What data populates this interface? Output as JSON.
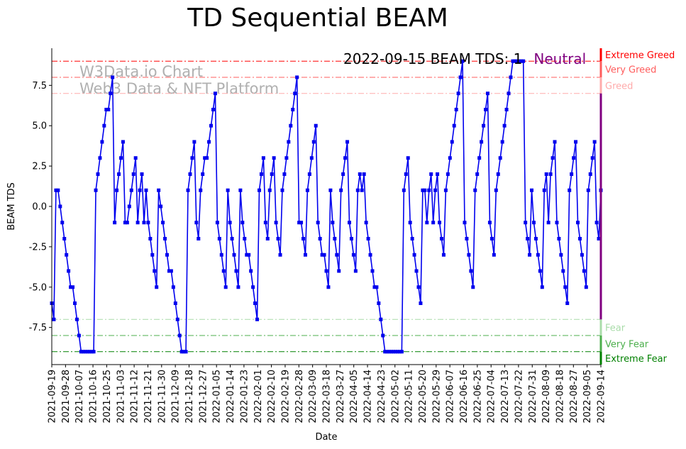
{
  "chart_data": {
    "type": "line",
    "title": "TD Sequential BEAM",
    "xlabel": "Date",
    "ylabel": "BEAM TDS",
    "ylim": [
      -9.8,
      9.8
    ],
    "yticks": [
      "7.5",
      "5.0",
      "2.5",
      "0.0",
      "-2.5",
      "-5.0",
      "-7.5"
    ],
    "ytick_values": [
      7.5,
      5.0,
      2.5,
      0.0,
      -2.5,
      -5.0,
      -7.5
    ],
    "x_start": "2021-09-19",
    "x_end": "2022-09-14",
    "xticks": [
      "2021-09-19",
      "2021-09-28",
      "2021-10-07",
      "2021-10-16",
      "2021-10-25",
      "2021-11-03",
      "2021-11-12",
      "2021-11-21",
      "2021-11-30",
      "2021-12-09",
      "2021-12-18",
      "2021-12-27",
      "2022-01-05",
      "2022-01-14",
      "2022-01-23",
      "2022-02-01",
      "2022-02-10",
      "2022-02-19",
      "2022-02-28",
      "2022-03-09",
      "2022-03-18",
      "2022-03-27",
      "2022-04-05",
      "2022-04-14",
      "2022-04-23",
      "2022-05-02",
      "2022-05-11",
      "2022-05-20",
      "2022-05-29",
      "2022-06-07",
      "2022-06-16",
      "2022-06-25",
      "2022-07-04",
      "2022-07-13",
      "2022-07-22",
      "2022-07-31",
      "2022-08-09",
      "2022-08-18",
      "2022-08-27",
      "2022-09-05",
      "2022-09-14"
    ],
    "series": [
      {
        "name": "BEAM TDS",
        "color": "#0000ee",
        "values": [
          -6,
          -7,
          1,
          1,
          0,
          -1,
          -2,
          -3,
          -4,
          -5,
          -5,
          -6,
          -7,
          -8,
          -9,
          -9,
          -9,
          -9,
          -9,
          -9,
          -9,
          1,
          2,
          3,
          4,
          5,
          6,
          6,
          7,
          8,
          -1,
          1,
          2,
          3,
          4,
          -1,
          -1,
          0,
          1,
          2,
          3,
          -1,
          1,
          2,
          -1,
          1,
          -1,
          -2,
          -3,
          -4,
          -5,
          1,
          0,
          -1,
          -2,
          -3,
          -4,
          -4,
          -5,
          -6,
          -7,
          -8,
          -9,
          -9,
          -9,
          1,
          2,
          3,
          4,
          -1,
          -2,
          1,
          2,
          3,
          3,
          4,
          5,
          6,
          7,
          -1,
          -2,
          -3,
          -4,
          -5,
          1,
          -1,
          -2,
          -3,
          -4,
          -5,
          1,
          -1,
          -2,
          -3,
          -3,
          -4,
          -5,
          -6,
          -7,
          1,
          2,
          3,
          -1,
          -2,
          1,
          2,
          3,
          -1,
          -2,
          -3,
          1,
          2,
          3,
          4,
          5,
          6,
          7,
          8,
          -1,
          -1,
          -2,
          -3,
          1,
          2,
          3,
          4,
          5,
          -1,
          -2,
          -3,
          -3,
          -4,
          -5,
          1,
          -1,
          -2,
          -3,
          -4,
          1,
          2,
          3,
          4,
          -1,
          -2,
          -3,
          -4,
          1,
          2,
          1,
          2,
          -1,
          -2,
          -3,
          -4,
          -5,
          -5,
          -6,
          -7,
          -8,
          -9,
          -9,
          -9,
          -9,
          -9,
          -9,
          -9,
          -9,
          -9,
          1,
          2,
          3,
          -1,
          -2,
          -3,
          -4,
          -5,
          -6,
          1,
          1,
          -1,
          1,
          2,
          -1,
          1,
          2,
          -1,
          -2,
          -3,
          1,
          2,
          3,
          4,
          5,
          6,
          7,
          8,
          9,
          -1,
          -2,
          -3,
          -4,
          -5,
          1,
          2,
          3,
          4,
          5,
          6,
          7,
          -1,
          -2,
          -3,
          1,
          2,
          3,
          4,
          5,
          6,
          7,
          8,
          9,
          9,
          9,
          9,
          9,
          9,
          -1,
          -2,
          -3,
          1,
          -1,
          -2,
          -3,
          -4,
          -5,
          1,
          2,
          -1,
          2,
          3,
          4,
          -1,
          -2,
          -3,
          -4,
          -5,
          -6,
          1,
          2,
          3,
          4,
          -1,
          -2,
          -3,
          -4,
          -5,
          1,
          2,
          3,
          4,
          -1,
          -2,
          1
        ]
      }
    ],
    "thresholds": [
      {
        "label": "Extreme Greed",
        "value": 9,
        "color": "#ff0000",
        "band": [
          9,
          9.8
        ]
      },
      {
        "label": "Very Greed",
        "value": 8,
        "color": "#ff5c5c",
        "band": [
          8,
          9
        ]
      },
      {
        "label": "Greed",
        "value": 7,
        "color": "#ffabab",
        "band": [
          7,
          8
        ]
      },
      {
        "label": "Fear",
        "value": -7,
        "color": "#a9dca9",
        "band": [
          -8,
          -7
        ]
      },
      {
        "label": "Very Fear",
        "value": -8,
        "color": "#4caf4c",
        "band": [
          -9,
          -8
        ]
      },
      {
        "label": "Extreme Fear",
        "value": -9,
        "color": "#008000",
        "band": [
          -9.8,
          -9
        ]
      }
    ],
    "neutral_color": "#800080",
    "annotation": {
      "text": "2022-09-15 BEAM TDS: 1",
      "state": "Neutral"
    },
    "watermark": [
      "W3Data.io Chart",
      "Web3 Data & NFT Platform"
    ]
  }
}
